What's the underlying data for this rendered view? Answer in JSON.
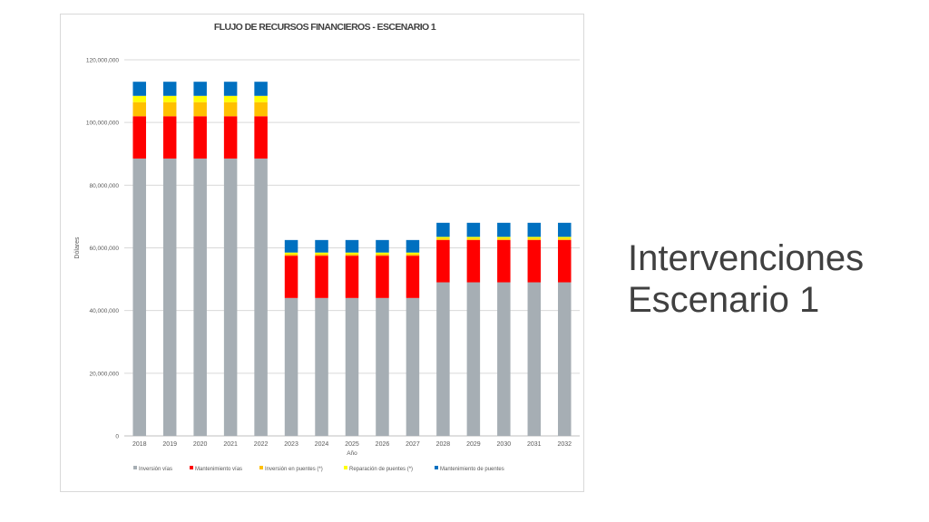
{
  "slide": {
    "title_line1": "Intervenciones",
    "title_line2": "Escenario 1"
  },
  "chart_data": {
    "type": "bar",
    "stacked": true,
    "title": "FLUJO DE RECURSOS FINANCIEROS - ESCENARIO 1",
    "xlabel": "Año",
    "ylabel": "Dólares",
    "ylim": [
      0,
      120000000
    ],
    "yticks": [
      0,
      20000000,
      40000000,
      60000000,
      80000000,
      100000000,
      120000000
    ],
    "ytick_labels": [
      "0",
      "20,000,000",
      "40,000,000",
      "60,000,000",
      "80,000,000",
      "100,000,000",
      "120,000,000"
    ],
    "grid": true,
    "legend_position": "bottom",
    "categories": [
      "2018",
      "2019",
      "2020",
      "2021",
      "2022",
      "2023",
      "2024",
      "2025",
      "2026",
      "2027",
      "2028",
      "2029",
      "2030",
      "2031",
      "2032"
    ],
    "series": [
      {
        "name": "Inversión vías",
        "color": "#a6aeb4",
        "values": [
          88500000,
          88500000,
          88500000,
          88500000,
          88500000,
          44000000,
          44000000,
          44000000,
          44000000,
          44000000,
          49000000,
          49000000,
          49000000,
          49000000,
          49000000
        ]
      },
      {
        "name": "Mantenimiento vías",
        "color": "#ff0000",
        "values": [
          13500000,
          13500000,
          13500000,
          13500000,
          13500000,
          13500000,
          13500000,
          13500000,
          13500000,
          13500000,
          13500000,
          13500000,
          13500000,
          13500000,
          13500000
        ]
      },
      {
        "name": "Inversión en puentes (*)",
        "color": "#ffc000",
        "values": [
          4500000,
          4500000,
          4500000,
          4500000,
          4500000,
          500000,
          500000,
          500000,
          500000,
          500000,
          500000,
          500000,
          500000,
          500000,
          500000
        ]
      },
      {
        "name": "Reparación de puentes (*)",
        "color": "#ffff00",
        "values": [
          2000000,
          2000000,
          2000000,
          2000000,
          2000000,
          500000,
          500000,
          500000,
          500000,
          500000,
          500000,
          500000,
          500000,
          500000,
          500000
        ]
      },
      {
        "name": "Mantenimiento de puentes",
        "color": "#0070c0",
        "values": [
          4500000,
          4500000,
          4500000,
          4500000,
          4500000,
          4000000,
          4000000,
          4000000,
          4000000,
          4000000,
          4500000,
          4500000,
          4500000,
          4500000,
          4500000
        ]
      }
    ]
  }
}
